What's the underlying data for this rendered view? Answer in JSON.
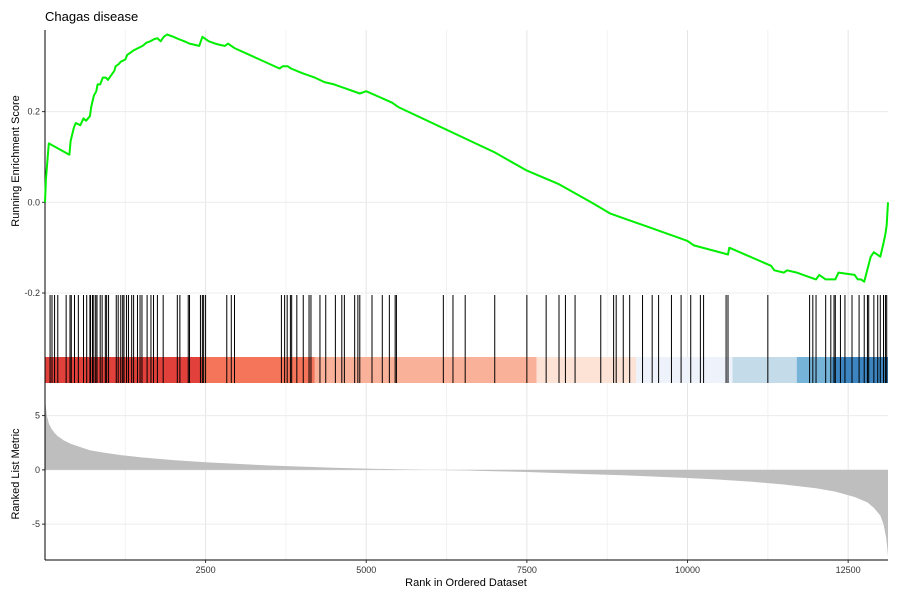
{
  "chart_data": {
    "type": "line",
    "title": "Chagas disease",
    "xlabel": "Rank in Ordered Dataset",
    "xlim": [
      1,
      13120
    ],
    "x_ticks": [
      2500,
      5000,
      7500,
      10000,
      12500
    ],
    "grid": true,
    "enrichment_panel": {
      "ylabel": "Running Enrichment Score",
      "ylim": [
        -0.2,
        0.38
      ],
      "y_ticks": [
        0.2,
        0.0,
        -0.2
      ],
      "line_color": "#00ee00",
      "series": [
        {
          "x": [
            1,
            15,
            60,
            380,
            400,
            450,
            480,
            550,
            600,
            640,
            700,
            720,
            760,
            800,
            820,
            860,
            900,
            950,
            980,
            1080,
            1100,
            1150,
            1180,
            1250,
            1280,
            1330,
            1380,
            1450,
            1520,
            1580,
            1640,
            1700,
            1750,
            1800,
            1850,
            1900,
            2000,
            2080,
            2170,
            2250,
            2400,
            2450,
            2550,
            2650,
            2730,
            2800,
            2850,
            2900,
            2950,
            3650,
            3700,
            3780,
            3830,
            4000,
            4200,
            4350,
            4500,
            4700,
            4900,
            5000,
            5400,
            5500,
            7000,
            7500,
            8000,
            8500,
            8800,
            9000,
            9200,
            9400,
            9700,
            9800,
            10000,
            10100,
            10630,
            10650,
            11300,
            11350,
            11500,
            11550,
            11700,
            11800,
            12000,
            12050,
            12150,
            12300,
            12350,
            12600,
            12650,
            12700,
            12750,
            12850,
            12900,
            13000,
            13050,
            13080,
            13100,
            13120
          ],
          "y": [
            0.0,
            0.05,
            0.13,
            0.105,
            0.135,
            0.165,
            0.175,
            0.17,
            0.185,
            0.18,
            0.19,
            0.21,
            0.235,
            0.245,
            0.26,
            0.26,
            0.275,
            0.275,
            0.27,
            0.29,
            0.3,
            0.305,
            0.31,
            0.315,
            0.325,
            0.33,
            0.335,
            0.34,
            0.345,
            0.352,
            0.355,
            0.36,
            0.362,
            0.355,
            0.365,
            0.37,
            0.365,
            0.36,
            0.355,
            0.35,
            0.345,
            0.365,
            0.355,
            0.35,
            0.347,
            0.345,
            0.35,
            0.345,
            0.34,
            0.295,
            0.3,
            0.3,
            0.295,
            0.285,
            0.275,
            0.265,
            0.26,
            0.25,
            0.24,
            0.245,
            0.22,
            0.21,
            0.11,
            0.07,
            0.04,
            0.0,
            -0.025,
            -0.035,
            -0.045,
            -0.055,
            -0.07,
            -0.075,
            -0.085,
            -0.095,
            -0.115,
            -0.1,
            -0.14,
            -0.15,
            -0.155,
            -0.15,
            -0.155,
            -0.16,
            -0.17,
            -0.16,
            -0.17,
            -0.17,
            -0.155,
            -0.16,
            -0.17,
            -0.17,
            -0.175,
            -0.12,
            -0.11,
            -0.12,
            -0.09,
            -0.07,
            -0.05,
            0.0
          ]
        }
      ]
    },
    "hits_panel": {
      "gene_hit_ranks": [
        80,
        110,
        150,
        200,
        330,
        390,
        410,
        460,
        520,
        600,
        650,
        700,
        710,
        740,
        760,
        790,
        810,
        860,
        890,
        940,
        960,
        990,
        1110,
        1140,
        1180,
        1210,
        1230,
        1270,
        1300,
        1350,
        1380,
        1440,
        1480,
        1510,
        1590,
        1650,
        1690,
        1750,
        1840,
        2060,
        2100,
        2230,
        2250,
        2420,
        2450,
        2470,
        2500,
        2830,
        2900,
        2950,
        3680,
        3730,
        3770,
        3820,
        3840,
        3920,
        4020,
        4110,
        4140,
        4280,
        4370,
        4520,
        4620,
        4660,
        4820,
        4870,
        4900,
        5090,
        5250,
        5360,
        5450,
        5470,
        6200,
        6350,
        6540,
        7000,
        7500,
        7800,
        8000,
        8100,
        8250,
        8650,
        8850,
        8890,
        9000,
        9100,
        9300,
        9450,
        9550,
        9750,
        9900,
        10050,
        10200,
        10250,
        10600,
        10630,
        11250,
        11900,
        11950,
        12000,
        12150,
        12230,
        12280,
        12300,
        12380,
        12450,
        12560,
        12670,
        12750,
        12800,
        12820,
        12900,
        12960,
        13000,
        13050,
        13080,
        13100
      ],
      "color_bands": [
        {
          "start": 1,
          "end": 2450,
          "color": "#e1403b"
        },
        {
          "start": 2450,
          "end": 4200,
          "color": "#f5755a"
        },
        {
          "start": 4200,
          "end": 7650,
          "color": "#fab199"
        },
        {
          "start": 7650,
          "end": 9200,
          "color": "#fde2d6"
        },
        {
          "start": 9200,
          "end": 10700,
          "color": "#eef3fb"
        },
        {
          "start": 10700,
          "end": 11700,
          "color": "#c4dbe9"
        },
        {
          "start": 11700,
          "end": 12250,
          "color": "#76b3d8"
        },
        {
          "start": 12250,
          "end": 13120,
          "color": "#3c85c0"
        }
      ]
    },
    "ranked_metric_panel": {
      "ylabel": "Ranked List Metric",
      "ylim": [
        -8.3,
        8.0
      ],
      "y_ticks": [
        5,
        0,
        -5
      ],
      "fill_color": "#bebebe",
      "series": [
        {
          "x": [
            1,
            10,
            30,
            60,
            100,
            150,
            200,
            300,
            400,
            500,
            700,
            900,
            1200,
            1500,
            2000,
            2500,
            3000,
            3500,
            4000,
            4500,
            5000,
            5500,
            6000,
            6500,
            7000,
            7500,
            8000,
            8500,
            9000,
            9500,
            10000,
            10500,
            11000,
            11500,
            12000,
            12300,
            12600,
            12800,
            12900,
            13000,
            13050,
            13090,
            13110,
            13120
          ],
          "values": [
            7.3,
            6.0,
            5.0,
            4.3,
            3.8,
            3.4,
            3.1,
            2.7,
            2.4,
            2.2,
            1.8,
            1.6,
            1.35,
            1.15,
            0.9,
            0.7,
            0.55,
            0.4,
            0.3,
            0.2,
            0.12,
            0.05,
            0.0,
            -0.05,
            -0.12,
            -0.2,
            -0.3,
            -0.4,
            -0.5,
            -0.62,
            -0.75,
            -0.9,
            -1.1,
            -1.35,
            -1.7,
            -2.0,
            -2.5,
            -3.0,
            -3.5,
            -4.2,
            -5.0,
            -6.2,
            -7.3,
            -8.0
          ]
        }
      ]
    }
  }
}
